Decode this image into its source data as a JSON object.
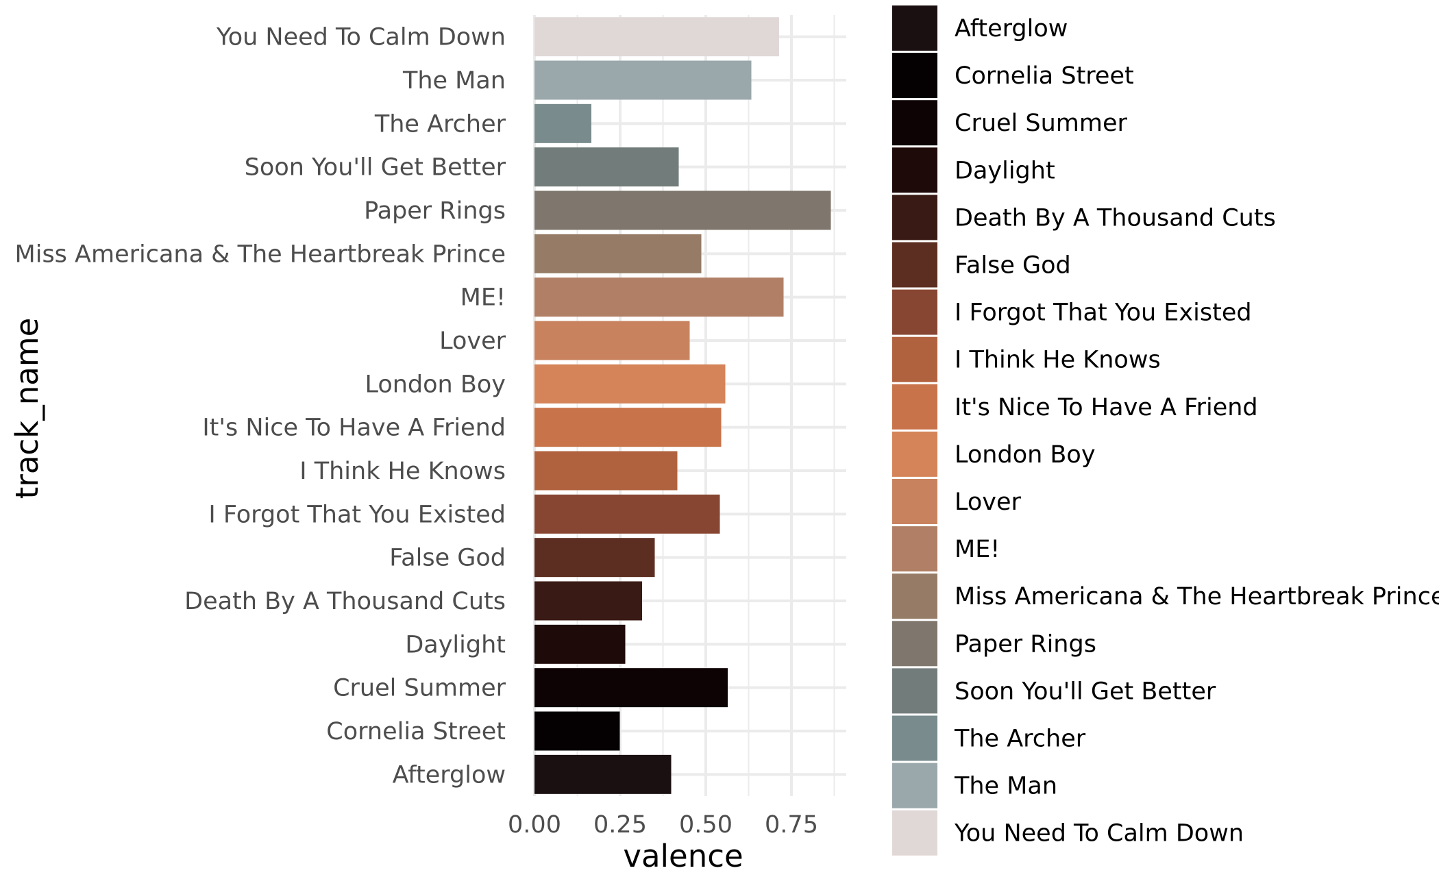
{
  "chart_data": {
    "type": "bar",
    "orientation": "horizontal",
    "xlabel": "valence",
    "ylabel": "track_name",
    "xlim": [
      0,
      0.92
    ],
    "x_ticks": [
      0,
      0.25,
      0.5,
      0.75
    ],
    "x_tick_labels": [
      "0.00",
      "0.25",
      "0.50",
      "0.75"
    ],
    "grid": true,
    "legend_position": "right",
    "categories": [
      "Afterglow",
      "Cornelia Street",
      "Cruel Summer",
      "Daylight",
      "Death By A Thousand Cuts",
      "False God",
      "I Forgot That You Existed",
      "I Think He Knows",
      "It's Nice To Have A Friend",
      "London Boy",
      "Lover",
      "ME!",
      "Miss Americana & The Heartbreak Prince",
      "Paper Rings",
      "Soon You'll Get Better",
      "The Archer",
      "The Man",
      "You Need To Calm Down"
    ],
    "values": [
      0.399,
      0.249,
      0.564,
      0.265,
      0.314,
      0.351,
      0.541,
      0.417,
      0.545,
      0.557,
      0.453,
      0.727,
      0.487,
      0.865,
      0.421,
      0.166,
      0.633,
      0.714
    ],
    "colors": [
      "#1a1012",
      "#050102",
      "#0e0304",
      "#1e0a09",
      "#3a1a15",
      "#5c2e21",
      "#874632",
      "#b0623f",
      "#c8734a",
      "#d48458",
      "#c8835e",
      "#b17f65",
      "#967c67",
      "#7f776d",
      "#727c7a",
      "#798b8d",
      "#9aa7ab",
      "#e0d8d7"
    ]
  }
}
